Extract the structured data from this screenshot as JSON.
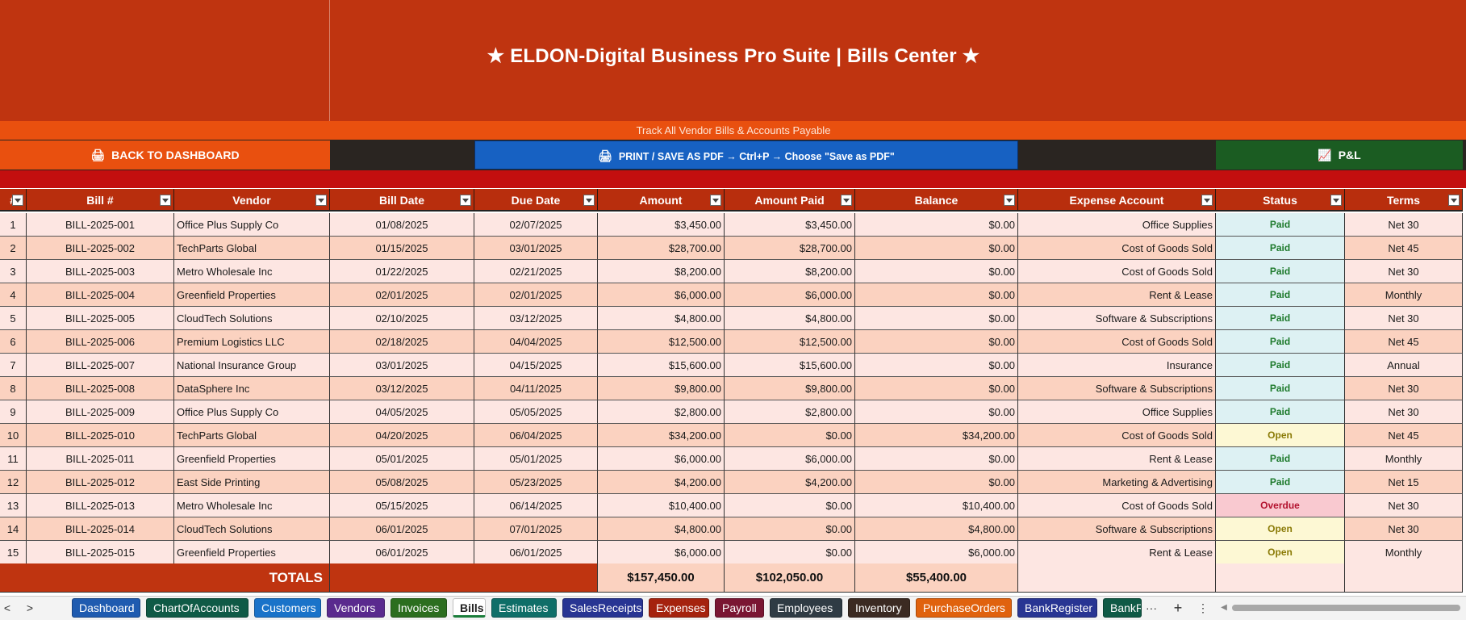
{
  "header": {
    "title": "★  ELDON-Digital Business Pro Suite  |  Bills Center  ★",
    "subtitle": "Track All Vendor Bills & Accounts Payable"
  },
  "buttons": {
    "back_icon": "🖨",
    "back": "BACK TO DASHBOARD",
    "print_icon": "🖨",
    "print": "PRINT / SAVE AS PDF  →  Ctrl+P  →  Choose \"Save as PDF\"",
    "pl_icon": "📈",
    "pl": "P&L"
  },
  "columns": [
    "#",
    "Bill #",
    "Vendor",
    "Bill Date",
    "Due Date",
    "Amount",
    "Amount Paid",
    "Balance",
    "Expense Account",
    "Status",
    "Terms"
  ],
  "rows": [
    [
      "1",
      "BILL-2025-001",
      "Office Plus Supply Co",
      "01/08/2025",
      "02/07/2025",
      "$3,450.00",
      "$3,450.00",
      "$0.00",
      "Office Supplies",
      "Paid",
      "Net 30"
    ],
    [
      "2",
      "BILL-2025-002",
      "TechParts Global",
      "01/15/2025",
      "03/01/2025",
      "$28,700.00",
      "$28,700.00",
      "$0.00",
      "Cost of Goods Sold",
      "Paid",
      "Net 45"
    ],
    [
      "3",
      "BILL-2025-003",
      "Metro Wholesale Inc",
      "01/22/2025",
      "02/21/2025",
      "$8,200.00",
      "$8,200.00",
      "$0.00",
      "Cost of Goods Sold",
      "Paid",
      "Net 30"
    ],
    [
      "4",
      "BILL-2025-004",
      "Greenfield Properties",
      "02/01/2025",
      "02/01/2025",
      "$6,000.00",
      "$6,000.00",
      "$0.00",
      "Rent & Lease",
      "Paid",
      "Monthly"
    ],
    [
      "5",
      "BILL-2025-005",
      "CloudTech Solutions",
      "02/10/2025",
      "03/12/2025",
      "$4,800.00",
      "$4,800.00",
      "$0.00",
      "Software & Subscriptions",
      "Paid",
      "Net 30"
    ],
    [
      "6",
      "BILL-2025-006",
      "Premium Logistics LLC",
      "02/18/2025",
      "04/04/2025",
      "$12,500.00",
      "$12,500.00",
      "$0.00",
      "Cost of Goods Sold",
      "Paid",
      "Net 45"
    ],
    [
      "7",
      "BILL-2025-007",
      "National Insurance Group",
      "03/01/2025",
      "04/15/2025",
      "$15,600.00",
      "$15,600.00",
      "$0.00",
      "Insurance",
      "Paid",
      "Annual"
    ],
    [
      "8",
      "BILL-2025-008",
      "DataSphere Inc",
      "03/12/2025",
      "04/11/2025",
      "$9,800.00",
      "$9,800.00",
      "$0.00",
      "Software & Subscriptions",
      "Paid",
      "Net 30"
    ],
    [
      "9",
      "BILL-2025-009",
      "Office Plus Supply Co",
      "04/05/2025",
      "05/05/2025",
      "$2,800.00",
      "$2,800.00",
      "$0.00",
      "Office Supplies",
      "Paid",
      "Net 30"
    ],
    [
      "10",
      "BILL-2025-010",
      "TechParts Global",
      "04/20/2025",
      "06/04/2025",
      "$34,200.00",
      "$0.00",
      "$34,200.00",
      "Cost of Goods Sold",
      "Open",
      "Net 45"
    ],
    [
      "11",
      "BILL-2025-011",
      "Greenfield Properties",
      "05/01/2025",
      "05/01/2025",
      "$6,000.00",
      "$6,000.00",
      "$0.00",
      "Rent & Lease",
      "Paid",
      "Monthly"
    ],
    [
      "12",
      "BILL-2025-012",
      "East Side Printing",
      "05/08/2025",
      "05/23/2025",
      "$4,200.00",
      "$4,200.00",
      "$0.00",
      "Marketing & Advertising",
      "Paid",
      "Net 15"
    ],
    [
      "13",
      "BILL-2025-013",
      "Metro Wholesale Inc",
      "05/15/2025",
      "06/14/2025",
      "$10,400.00",
      "$0.00",
      "$10,400.00",
      "Cost of Goods Sold",
      "Overdue",
      "Net 30"
    ],
    [
      "14",
      "BILL-2025-014",
      "CloudTech Solutions",
      "06/01/2025",
      "07/01/2025",
      "$4,800.00",
      "$0.00",
      "$4,800.00",
      "Software & Subscriptions",
      "Open",
      "Net 30"
    ],
    [
      "15",
      "BILL-2025-015",
      "Greenfield Properties",
      "06/01/2025",
      "06/01/2025",
      "$6,000.00",
      "$0.00",
      "$6,000.00",
      "Rent & Lease",
      "Open",
      "Monthly"
    ]
  ],
  "totals": {
    "label": "TOTALS",
    "amount": "$157,450.00",
    "paid": "$102,050.00",
    "balance": "$55,400.00"
  },
  "sheet_tabs": [
    {
      "label": "Dashboard",
      "color": "#1f5bb0"
    },
    {
      "label": "ChartOfAccounts",
      "color": "#0f5a46"
    },
    {
      "label": "Customers",
      "color": "#1a73c9"
    },
    {
      "label": "Vendors",
      "color": "#5a2a8e"
    },
    {
      "label": "Invoices",
      "color": "#2c6e1f"
    },
    {
      "label": "Bills",
      "color": "#ffffff",
      "active": true
    },
    {
      "label": "Estimates",
      "color": "#0f6e68"
    },
    {
      "label": "SalesReceipts",
      "color": "#283593"
    },
    {
      "label": "Expenses",
      "color": "#a5220e"
    },
    {
      "label": "Payroll",
      "color": "#7a1633"
    },
    {
      "label": "Employees",
      "color": "#2f3b44"
    },
    {
      "label": "Inventory",
      "color": "#3b2a22"
    },
    {
      "label": "PurchaseOrders",
      "color": "#e0620e"
    },
    {
      "label": "BankRegister",
      "color": "#283593"
    },
    {
      "label": "BankRec",
      "color": "#0f5a46"
    }
  ],
  "tab_controls": {
    "prev": "<",
    "next": ">",
    "more": "···",
    "add": "+",
    "menu": "⋮",
    "scroll_left": "◀"
  },
  "colors": {
    "title_bg": "#bf3410",
    "accent_orange": "#e9500f",
    "print_blue": "#1761c2",
    "pl_green": "#1b5c22",
    "band_red": "#c30f0f"
  }
}
